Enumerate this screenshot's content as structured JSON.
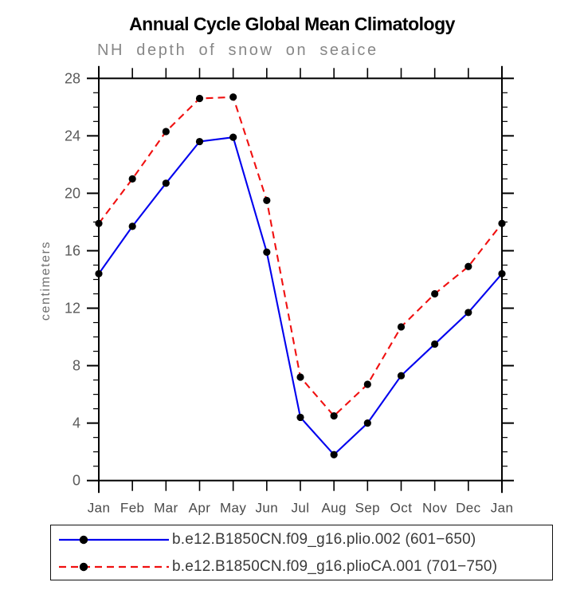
{
  "chart_data": {
    "type": "line",
    "title": "Annual Cycle Global Mean Climatology",
    "subtitle": "NH depth of snow on seaice",
    "xlabel": "",
    "ylabel": "centimeters",
    "x_categories": [
      "Jan",
      "Feb",
      "Mar",
      "Apr",
      "May",
      "Jun",
      "Jul",
      "Aug",
      "Sep",
      "Oct",
      "Nov",
      "Dec",
      "Jan"
    ],
    "ylim": [
      0,
      28
    ],
    "yticks": [
      0,
      4,
      8,
      12,
      16,
      20,
      24,
      28
    ],
    "yminor_interval": 1,
    "grid": "off",
    "legend_position": "bottom-box",
    "series": [
      {
        "name": "b.e12.B1850CN.f09_g16.plio.002 (601−650)",
        "color": "#0000ee",
        "line_style": "solid",
        "marker": "filled-circle",
        "marker_color": "#000000",
        "values": [
          14.4,
          17.7,
          20.7,
          23.6,
          23.9,
          15.9,
          4.4,
          1.8,
          4.0,
          7.3,
          9.5,
          11.7,
          14.4
        ]
      },
      {
        "name": "b.e12.B1850CN.f09_g16.plioCA.001 (701−750)",
        "color": "#f01010",
        "line_style": "dashed",
        "marker": "filled-circle",
        "marker_color": "#000000",
        "values": [
          17.9,
          21.0,
          24.3,
          26.6,
          26.7,
          19.5,
          7.2,
          4.5,
          6.7,
          10.7,
          13.0,
          14.9,
          17.9
        ]
      }
    ]
  },
  "colors": {
    "axis": "#000000",
    "tick_label": "#5a5a5a",
    "month_label": "#4a4a4a",
    "subtitle_text": "#878787",
    "legend_text": "#3a3a3a",
    "background": "#ffffff"
  }
}
